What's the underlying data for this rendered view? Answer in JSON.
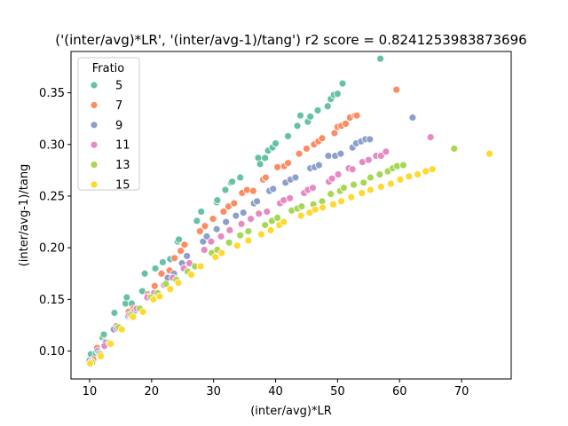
{
  "chart_data": {
    "type": "scatter",
    "title": "('(inter/avg)*LR', '(inter/avg-1)/tang') r2 score = 0.8241253983873696",
    "xlabel": "(inter/avg)*LR",
    "ylabel": "(inter/avg-1)/tang",
    "xlim": [
      7,
      78
    ],
    "ylim": [
      0.073,
      0.39
    ],
    "xticks": [
      10,
      20,
      30,
      40,
      50,
      60,
      70
    ],
    "yticks": [
      0.1,
      0.15,
      0.2,
      0.25,
      0.3,
      0.35
    ],
    "xtick_labels": [
      "10",
      "20",
      "30",
      "40",
      "50",
      "60",
      "70"
    ],
    "ytick_labels": [
      "0.10",
      "0.15",
      "0.20",
      "0.25",
      "0.30",
      "0.35"
    ],
    "grid": false,
    "legend": {
      "title": "Fratio",
      "placement": "top-left",
      "entries": [
        "5",
        "7",
        "9",
        "11",
        "13",
        "15"
      ]
    },
    "series": [
      {
        "name": "5",
        "color": "#66c2a5",
        "points": [
          [
            10.2,
            0.097
          ],
          [
            11.0,
            0.098
          ],
          [
            12.1,
            0.113
          ],
          [
            12.3,
            0.116
          ],
          [
            14.0,
            0.137
          ],
          [
            15.8,
            0.146
          ],
          [
            16.0,
            0.152
          ],
          [
            16.8,
            0.146
          ],
          [
            18.5,
            0.158
          ],
          [
            18.9,
            0.175
          ],
          [
            20.6,
            0.18
          ],
          [
            21.8,
            0.186
          ],
          [
            23.0,
            0.189
          ],
          [
            24.2,
            0.206
          ],
          [
            24.4,
            0.208
          ],
          [
            27.3,
            0.226
          ],
          [
            28.0,
            0.235
          ],
          [
            30.5,
            0.244
          ],
          [
            30.6,
            0.246
          ],
          [
            31.9,
            0.256
          ],
          [
            32.8,
            0.263
          ],
          [
            33.0,
            0.264
          ],
          [
            34.3,
            0.268
          ],
          [
            37.2,
            0.287
          ],
          [
            37.5,
            0.281
          ],
          [
            38.3,
            0.287
          ],
          [
            38.8,
            0.294
          ],
          [
            39.5,
            0.297
          ],
          [
            40.0,
            0.301
          ],
          [
            42.0,
            0.308
          ],
          [
            43.5,
            0.318
          ],
          [
            44.0,
            0.328
          ],
          [
            45.2,
            0.322
          ],
          [
            45.6,
            0.327
          ],
          [
            46.8,
            0.333
          ],
          [
            48.4,
            0.337
          ],
          [
            48.9,
            0.344
          ],
          [
            49.4,
            0.348
          ],
          [
            50.0,
            0.349
          ],
          [
            50.8,
            0.359
          ],
          [
            56.9,
            0.383
          ]
        ]
      },
      {
        "name": "7",
        "color": "#fc8d62",
        "points": [
          [
            10.6,
            0.092
          ],
          [
            11.2,
            0.103
          ],
          [
            12.5,
            0.109
          ],
          [
            14.3,
            0.124
          ],
          [
            16.3,
            0.138
          ],
          [
            17.1,
            0.141
          ],
          [
            19.4,
            0.155
          ],
          [
            20.5,
            0.163
          ],
          [
            21.6,
            0.175
          ],
          [
            22.9,
            0.178
          ],
          [
            23.7,
            0.19
          ],
          [
            24.7,
            0.197
          ],
          [
            25.3,
            0.203
          ],
          [
            27.8,
            0.216
          ],
          [
            28.6,
            0.221
          ],
          [
            29.9,
            0.228
          ],
          [
            31.6,
            0.235
          ],
          [
            32.4,
            0.24
          ],
          [
            33.3,
            0.243
          ],
          [
            34.6,
            0.253
          ],
          [
            35.4,
            0.256
          ],
          [
            36.4,
            0.255
          ],
          [
            38.0,
            0.266
          ],
          [
            38.4,
            0.268
          ],
          [
            40.3,
            0.278
          ],
          [
            41.4,
            0.279
          ],
          [
            42.0,
            0.282
          ],
          [
            43.8,
            0.291
          ],
          [
            45.0,
            0.296
          ],
          [
            46.2,
            0.3
          ],
          [
            46.9,
            0.303
          ],
          [
            47.5,
            0.306
          ],
          [
            49.5,
            0.311
          ],
          [
            50.0,
            0.317
          ],
          [
            50.6,
            0.318
          ],
          [
            51.3,
            0.32
          ],
          [
            52.0,
            0.326
          ],
          [
            52.8,
            0.328
          ],
          [
            53.1,
            0.328
          ],
          [
            59.5,
            0.353
          ]
        ]
      },
      {
        "name": "9",
        "color": "#8da0cb",
        "points": [
          [
            10.0,
            0.091
          ],
          [
            11.3,
            0.1
          ],
          [
            12.6,
            0.108
          ],
          [
            13.9,
            0.121
          ],
          [
            16.2,
            0.134
          ],
          [
            17.3,
            0.139
          ],
          [
            19.6,
            0.153
          ],
          [
            20.3,
            0.155
          ],
          [
            22.6,
            0.171
          ],
          [
            23.6,
            0.175
          ],
          [
            24.9,
            0.185
          ],
          [
            25.7,
            0.192
          ],
          [
            28.3,
            0.206
          ],
          [
            28.9,
            0.211
          ],
          [
            30.5,
            0.218
          ],
          [
            32.0,
            0.225
          ],
          [
            33.6,
            0.231
          ],
          [
            34.8,
            0.234
          ],
          [
            36.5,
            0.243
          ],
          [
            37.0,
            0.245
          ],
          [
            39.0,
            0.255
          ],
          [
            39.6,
            0.257
          ],
          [
            41.6,
            0.263
          ],
          [
            42.4,
            0.266
          ],
          [
            43.2,
            0.268
          ],
          [
            45.6,
            0.277
          ],
          [
            46.3,
            0.278
          ],
          [
            47.0,
            0.28
          ],
          [
            48.5,
            0.289
          ],
          [
            49.6,
            0.289
          ],
          [
            50.5,
            0.291
          ],
          [
            52.4,
            0.297
          ],
          [
            53.0,
            0.301
          ],
          [
            53.8,
            0.303
          ],
          [
            54.5,
            0.305
          ],
          [
            55.2,
            0.305
          ],
          [
            62.1,
            0.326
          ]
        ]
      },
      {
        "name": "11",
        "color": "#e78ac3",
        "points": [
          [
            10.3,
            0.09
          ],
          [
            11.5,
            0.098
          ],
          [
            12.4,
            0.105
          ],
          [
            14.4,
            0.122
          ],
          [
            16.4,
            0.135
          ],
          [
            17.6,
            0.141
          ],
          [
            19.3,
            0.152
          ],
          [
            20.4,
            0.156
          ],
          [
            22.0,
            0.164
          ],
          [
            23.4,
            0.171
          ],
          [
            25.2,
            0.18
          ],
          [
            26.1,
            0.185
          ],
          [
            28.5,
            0.198
          ],
          [
            29.6,
            0.206
          ],
          [
            31.2,
            0.211
          ],
          [
            32.6,
            0.217
          ],
          [
            34.5,
            0.223
          ],
          [
            36.0,
            0.228
          ],
          [
            37.3,
            0.233
          ],
          [
            38.6,
            0.235
          ],
          [
            40.7,
            0.243
          ],
          [
            41.3,
            0.246
          ],
          [
            42.3,
            0.248
          ],
          [
            44.6,
            0.253
          ],
          [
            45.2,
            0.256
          ],
          [
            46.0,
            0.258
          ],
          [
            48.6,
            0.264
          ],
          [
            49.1,
            0.267
          ],
          [
            50.1,
            0.271
          ],
          [
            51.8,
            0.277
          ],
          [
            52.4,
            0.276
          ],
          [
            54.0,
            0.283
          ],
          [
            55.0,
            0.285
          ],
          [
            56.2,
            0.289
          ],
          [
            57.0,
            0.289
          ],
          [
            57.8,
            0.293
          ],
          [
            65.0,
            0.307
          ]
        ]
      },
      {
        "name": "13",
        "color": "#a6d854",
        "points": [
          [
            10.4,
            0.089
          ],
          [
            11.7,
            0.097
          ],
          [
            13.2,
            0.108
          ],
          [
            14.7,
            0.123
          ],
          [
            16.7,
            0.135
          ],
          [
            18.1,
            0.141
          ],
          [
            19.9,
            0.152
          ],
          [
            21.0,
            0.156
          ],
          [
            22.3,
            0.165
          ],
          [
            24.0,
            0.169
          ],
          [
            25.8,
            0.177
          ],
          [
            27.0,
            0.182
          ],
          [
            29.7,
            0.195
          ],
          [
            30.6,
            0.198
          ],
          [
            32.5,
            0.205
          ],
          [
            34.3,
            0.212
          ],
          [
            35.6,
            0.216
          ],
          [
            38.3,
            0.222
          ],
          [
            39.4,
            0.226
          ],
          [
            40.3,
            0.229
          ],
          [
            42.6,
            0.236
          ],
          [
            43.5,
            0.238
          ],
          [
            44.2,
            0.24
          ],
          [
            46.1,
            0.242
          ],
          [
            47.5,
            0.245
          ],
          [
            48.9,
            0.252
          ],
          [
            50.4,
            0.255
          ],
          [
            51.0,
            0.258
          ],
          [
            52.6,
            0.261
          ],
          [
            54.2,
            0.263
          ],
          [
            55.3,
            0.268
          ],
          [
            56.8,
            0.271
          ],
          [
            58.1,
            0.274
          ],
          [
            58.9,
            0.277
          ],
          [
            59.6,
            0.279
          ],
          [
            60.6,
            0.28
          ],
          [
            68.8,
            0.296
          ]
        ]
      },
      {
        "name": "15",
        "color": "#ffd92f",
        "points": [
          [
            10.1,
            0.088
          ],
          [
            11.8,
            0.095
          ],
          [
            13.4,
            0.107
          ],
          [
            15.2,
            0.121
          ],
          [
            17.0,
            0.133
          ],
          [
            18.6,
            0.138
          ],
          [
            20.3,
            0.15
          ],
          [
            21.3,
            0.153
          ],
          [
            23.0,
            0.16
          ],
          [
            24.3,
            0.166
          ],
          [
            26.4,
            0.174
          ],
          [
            27.9,
            0.182
          ],
          [
            30.3,
            0.191
          ],
          [
            31.3,
            0.195
          ],
          [
            33.8,
            0.202
          ],
          [
            35.6,
            0.207
          ],
          [
            37.7,
            0.213
          ],
          [
            39.2,
            0.217
          ],
          [
            40.6,
            0.222
          ],
          [
            41.3,
            0.225
          ],
          [
            44.1,
            0.231
          ],
          [
            45.5,
            0.234
          ],
          [
            46.4,
            0.237
          ],
          [
            47.6,
            0.239
          ],
          [
            49.3,
            0.242
          ],
          [
            50.6,
            0.245
          ],
          [
            52.2,
            0.249
          ],
          [
            53.9,
            0.253
          ],
          [
            55.3,
            0.256
          ],
          [
            57.0,
            0.259
          ],
          [
            58.6,
            0.262
          ],
          [
            60.1,
            0.266
          ],
          [
            61.5,
            0.269
          ],
          [
            62.9,
            0.271
          ],
          [
            64.2,
            0.274
          ],
          [
            65.3,
            0.276
          ],
          [
            74.5,
            0.291
          ]
        ]
      }
    ]
  }
}
